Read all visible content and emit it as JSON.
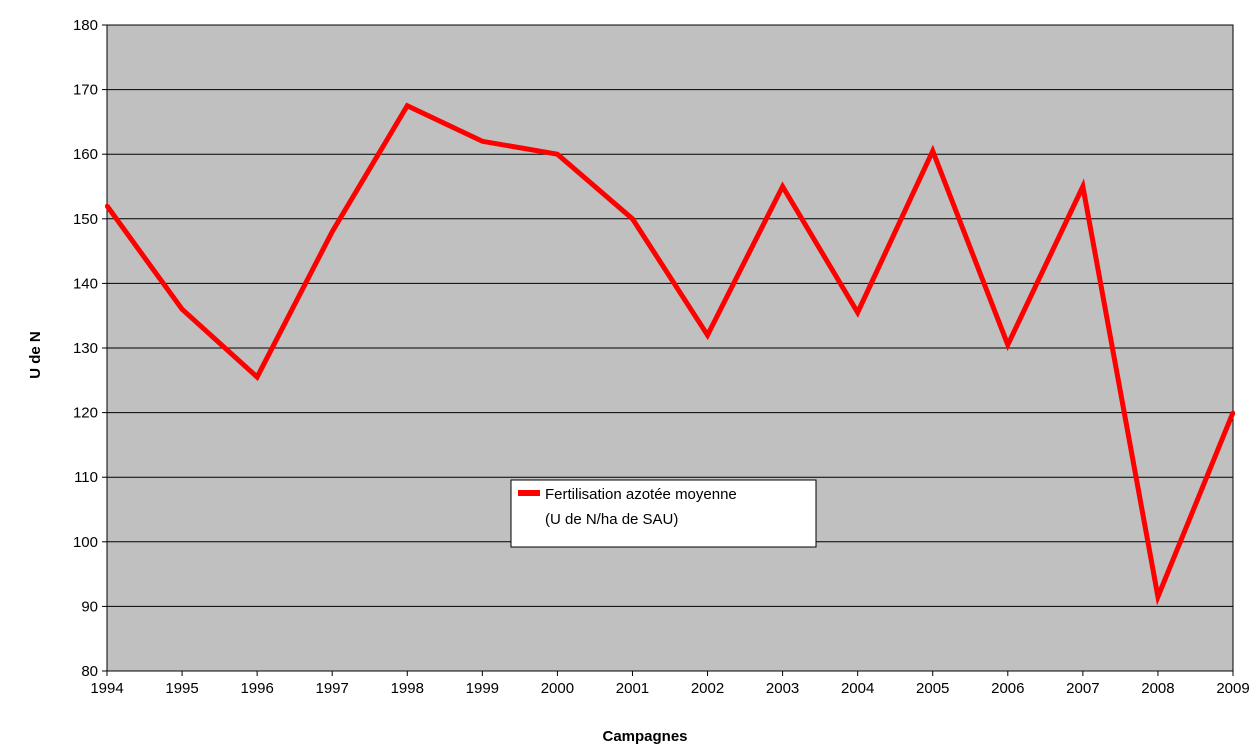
{
  "chart_data": {
    "type": "line",
    "title": "",
    "xlabel": "Campagnes",
    "ylabel": "U de N",
    "categories": [
      "1994",
      "1995",
      "1996",
      "1997",
      "1998",
      "1999",
      "2000",
      "2001",
      "2002",
      "2003",
      "2004",
      "2005",
      "2006",
      "2007",
      "2008",
      "2009"
    ],
    "series": [
      {
        "name_lines": [
          "Fertilisation azotée moyenne",
          "(U de N/ha de SAU)"
        ],
        "color": "#ff0000",
        "values": [
          152,
          136,
          125.5,
          148,
          167.5,
          162,
          160,
          150,
          132,
          155,
          135.5,
          160.5,
          130.5,
          155,
          91.5,
          120
        ]
      }
    ],
    "ylim": [
      80,
      180
    ],
    "yticks": [
      80,
      90,
      100,
      110,
      120,
      130,
      140,
      150,
      160,
      170,
      180
    ],
    "grid": true,
    "legend_position": "center",
    "plot_background": "#c0c0c0"
  }
}
